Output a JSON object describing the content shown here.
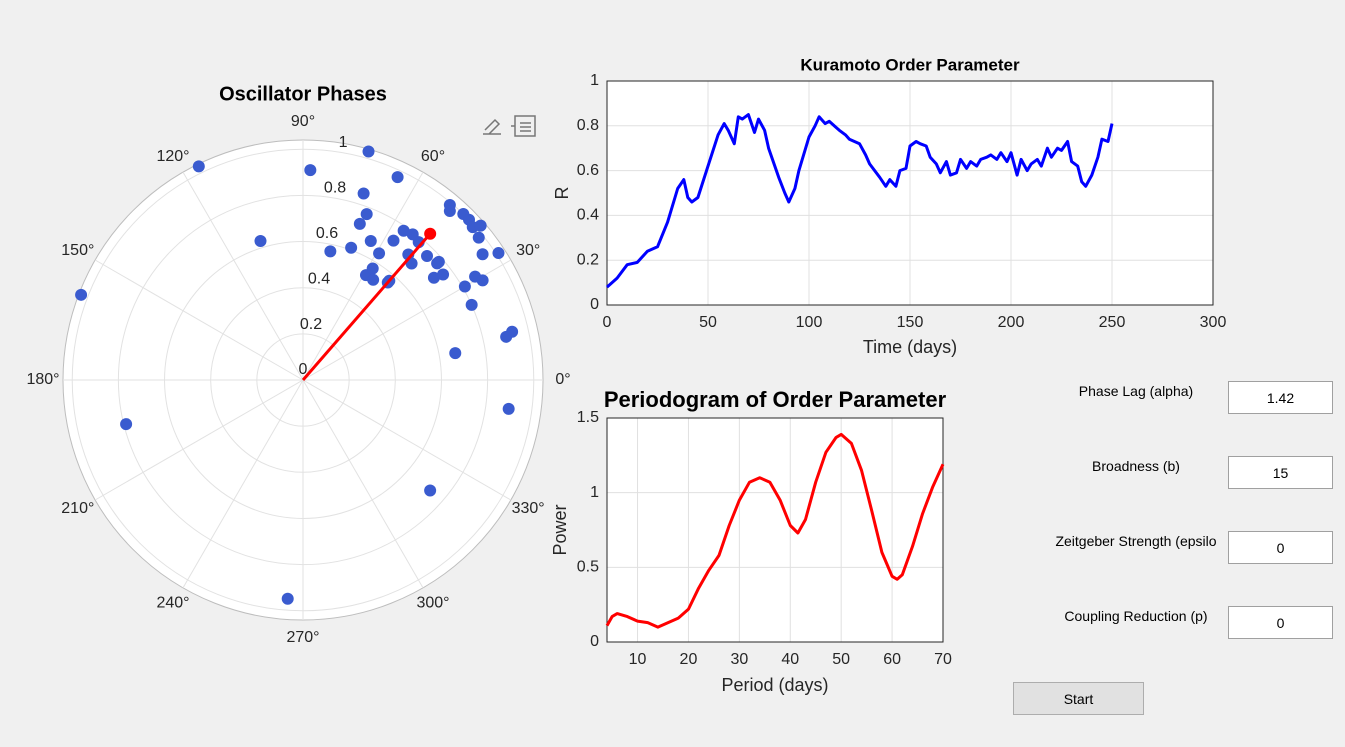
{
  "chart_data": [
    {
      "type": "polar",
      "title": "Oscillator Phases",
      "color": "#3a5bcf",
      "theta": [
        116,
        88,
        74,
        65,
        72,
        69,
        70,
        107,
        78,
        70,
        64,
        59,
        57,
        56,
        53,
        50,
        50,
        47,
        45,
        41,
        41,
        38,
        37,
        59,
        58,
        55,
        49,
        49,
        50,
        49,
        46,
        44,
        42,
        41,
        39,
        35,
        33,
        31,
        29,
        30,
        24,
        13,
        12,
        10,
        352,
        319,
        266,
        194,
        159
      ],
      "r": [
        1.03,
        0.91,
        1.03,
        0.97,
        0.85,
        0.77,
        0.72,
        0.63,
        0.57,
        0.61,
        0.67,
        0.64,
        0.72,
        0.78,
        0.79,
        0.78,
        0.71,
        0.69,
        0.76,
        0.77,
        0.78,
        0.72,
        0.76,
        0.53,
        0.57,
        0.53,
        0.56,
        0.57,
        0.99,
        0.97,
        1.0,
        1.0,
        0.99,
        1.02,
        0.98,
        0.95,
        1.01,
        0.87,
        0.89,
        0.81,
        0.8,
        0.93,
        0.9,
        0.67,
        0.9,
        0.73,
        0.95,
        0.79,
        1.03
      ],
      "vector": {
        "theta": 49,
        "r": 0.84,
        "color": "#ff0000"
      },
      "rlim": [
        0,
        1.04
      ],
      "rticks": [
        0,
        0.2,
        0.4,
        0.6,
        0.8,
        1
      ],
      "thetaticks": [
        {
          "value": 0,
          "label": "0°"
        },
        {
          "value": 30,
          "label": "30°"
        },
        {
          "value": 60,
          "label": "60°"
        },
        {
          "value": 90,
          "label": "90°"
        },
        {
          "value": 120,
          "label": "120°"
        },
        {
          "value": 150,
          "label": "150°"
        },
        {
          "value": 180,
          "label": "180°"
        },
        {
          "value": 210,
          "label": "210°"
        },
        {
          "value": 240,
          "label": "240°"
        },
        {
          "value": 270,
          "label": "270°"
        },
        {
          "value": 300,
          "label": "300°"
        },
        {
          "value": 330,
          "label": "330°"
        }
      ],
      "grid": true
    },
    {
      "type": "line",
      "title": "Kuramoto Order Parameter",
      "xlabel": "Time (days)",
      "ylabel": "R",
      "color": "#0000ff",
      "x": [
        0,
        5,
        10,
        15,
        20,
        25,
        30,
        35,
        38,
        40,
        42,
        45,
        50,
        55,
        58,
        60,
        63,
        65,
        67,
        70,
        73,
        75,
        78,
        80,
        85,
        88,
        90,
        93,
        95,
        100,
        103,
        105,
        108,
        110,
        115,
        118,
        120,
        125,
        128,
        130,
        135,
        138,
        140,
        143,
        145,
        148,
        150,
        153,
        155,
        158,
        160,
        163,
        165,
        168,
        170,
        173,
        175,
        178,
        180,
        183,
        185,
        188,
        190,
        193,
        195,
        198,
        200,
        203,
        205,
        208,
        210,
        213,
        215,
        218,
        220,
        223,
        225,
        228,
        230,
        233,
        235,
        237,
        240,
        243,
        245,
        248,
        250
      ],
      "values": [
        0.08,
        0.12,
        0.18,
        0.19,
        0.24,
        0.26,
        0.37,
        0.52,
        0.56,
        0.48,
        0.46,
        0.48,
        0.62,
        0.76,
        0.81,
        0.78,
        0.72,
        0.84,
        0.83,
        0.85,
        0.77,
        0.83,
        0.78,
        0.7,
        0.57,
        0.5,
        0.46,
        0.52,
        0.6,
        0.75,
        0.8,
        0.84,
        0.81,
        0.82,
        0.78,
        0.76,
        0.74,
        0.72,
        0.67,
        0.63,
        0.57,
        0.53,
        0.56,
        0.53,
        0.6,
        0.61,
        0.71,
        0.73,
        0.72,
        0.71,
        0.66,
        0.63,
        0.59,
        0.64,
        0.58,
        0.59,
        0.65,
        0.61,
        0.64,
        0.62,
        0.65,
        0.66,
        0.67,
        0.65,
        0.68,
        0.64,
        0.68,
        0.58,
        0.65,
        0.6,
        0.63,
        0.65,
        0.62,
        0.7,
        0.66,
        0.7,
        0.69,
        0.73,
        0.64,
        0.62,
        0.55,
        0.53,
        0.58,
        0.66,
        0.74,
        0.73,
        0.81
      ],
      "xlim": [
        0,
        300
      ],
      "xticks": [
        0,
        50,
        100,
        150,
        200,
        250,
        300
      ],
      "ylim": [
        0,
        1
      ],
      "yticks": [
        0,
        0.2,
        0.4,
        0.6,
        0.8,
        1
      ],
      "grid": true
    },
    {
      "type": "line",
      "title": "Periodogram of Order Parameter",
      "xlabel": "Period (days)",
      "ylabel": "Power",
      "color": "#ff0000",
      "x": [
        4,
        5,
        6,
        8,
        10,
        12,
        14,
        16,
        18,
        20,
        22,
        24,
        26,
        28,
        30,
        32,
        34,
        36,
        38,
        40,
        41.5,
        43,
        45,
        47,
        49,
        50,
        52,
        54,
        56,
        58,
        60,
        61,
        62,
        64,
        66,
        68,
        70
      ],
      "values": [
        0.11,
        0.17,
        0.19,
        0.17,
        0.14,
        0.13,
        0.1,
        0.13,
        0.16,
        0.22,
        0.36,
        0.48,
        0.58,
        0.78,
        0.95,
        1.07,
        1.1,
        1.07,
        0.95,
        0.78,
        0.73,
        0.82,
        1.07,
        1.27,
        1.37,
        1.39,
        1.33,
        1.15,
        0.88,
        0.6,
        0.44,
        0.42,
        0.45,
        0.64,
        0.86,
        1.04,
        1.19
      ],
      "xlim": [
        4,
        70
      ],
      "xticks": [
        10,
        20,
        30,
        40,
        50,
        60,
        70
      ],
      "ylim": [
        0,
        1.5
      ],
      "yticks": [
        0,
        0.5,
        1,
        1.5
      ],
      "grid": true
    }
  ],
  "controls": {
    "fields": [
      {
        "label": "Phase Lag (alpha)",
        "value": "1.42"
      },
      {
        "label": "Broadness (b)",
        "value": "15"
      },
      {
        "label": "Zeitgeber Strength (epsilo",
        "value": "0"
      },
      {
        "label": "Coupling Reduction (p)",
        "value": "0"
      }
    ],
    "button": "Start"
  }
}
